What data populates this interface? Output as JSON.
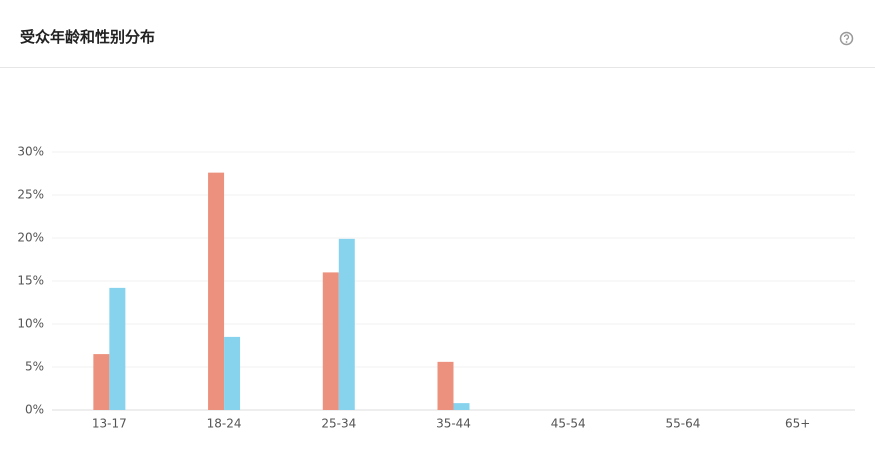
{
  "chart_data": {
    "type": "bar",
    "title": "受众年龄和性别分布",
    "categories": [
      "13-17",
      "18-24",
      "25-34",
      "35-44",
      "45-54",
      "55-64",
      "65+"
    ],
    "series": [
      {
        "color": "#ec917e",
        "values": [
          6.5,
          27.6,
          16.0,
          5.6,
          0,
          0,
          0
        ]
      },
      {
        "color": "#87d3ee",
        "values": [
          14.2,
          8.5,
          19.9,
          0.8,
          0,
          0,
          0
        ]
      }
    ],
    "ylim": [
      0,
      30
    ],
    "yticks": [
      {
        "value": 0,
        "label": "0%"
      },
      {
        "value": 5,
        "label": "5%"
      },
      {
        "value": 10,
        "label": "10%"
      },
      {
        "value": 15,
        "label": "15%"
      },
      {
        "value": 20,
        "label": "20%"
      },
      {
        "value": 25,
        "label": "25%"
      },
      {
        "value": 30,
        "label": "30%"
      }
    ],
    "grid": true
  }
}
